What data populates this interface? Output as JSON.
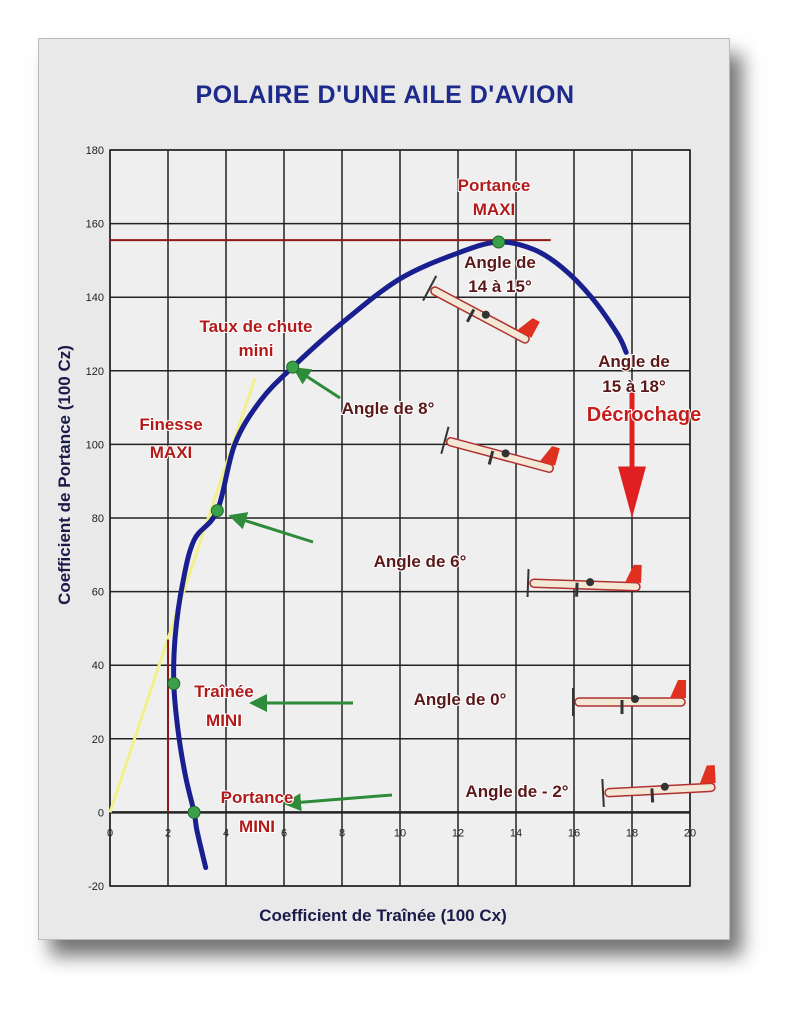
{
  "chart_data": {
    "type": "line",
    "title": "POLAIRE D'UNE AILE D'AVION",
    "xlabel": "Coefficient de Traînée (100 Cx)",
    "ylabel": "Coefficient de Portance (100 Cz)",
    "xlim": [
      0,
      20
    ],
    "ylim": [
      -20,
      180
    ],
    "xticks": [
      0,
      2,
      4,
      6,
      8,
      10,
      12,
      14,
      16,
      18,
      20
    ],
    "yticks": [
      -20,
      0,
      20,
      40,
      60,
      80,
      100,
      120,
      140,
      160,
      180
    ],
    "grid": true,
    "series": [
      {
        "name": "polaire",
        "color": "#1a1f8f",
        "x": [
          3.3,
          3.0,
          2.9,
          2.6,
          2.35,
          2.2,
          2.25,
          2.5,
          2.9,
          3.7,
          4.3,
          5.2,
          6.3,
          8.0,
          10.0,
          12.0,
          13.4,
          14.6,
          15.6,
          16.6,
          17.5,
          17.8
        ],
        "y": [
          -15,
          -5,
          0,
          10,
          22,
          35,
          48,
          62,
          74,
          82,
          100,
          112,
          121,
          133,
          145,
          152,
          155,
          153,
          148,
          140,
          130,
          125
        ]
      }
    ],
    "key_points": [
      {
        "name": "Portance MINI",
        "x": 2.9,
        "y": 0
      },
      {
        "name": "Trainee MINI",
        "x": 2.2,
        "y": 35
      },
      {
        "name": "Finesse MAXI",
        "x": 3.7,
        "y": 82
      },
      {
        "name": "Taux de chute mini",
        "x": 6.3,
        "y": 121
      },
      {
        "name": "Portance MAXI",
        "x": 13.4,
        "y": 155
      }
    ],
    "reference_lines": {
      "cz_max": {
        "y": 155.5,
        "x_from": 0,
        "x_to": 15.2,
        "color": "#8b1a1a"
      },
      "cx_min": {
        "x": 2,
        "y_from": 0,
        "y_to": 47,
        "color": "#8b1a1a"
      },
      "tangent": {
        "from": [
          0,
          0
        ],
        "to": [
          5,
          118
        ],
        "color": "#f2f08a"
      }
    },
    "annotations": {
      "portance_maxi": [
        "Portance",
        "MAXI"
      ],
      "taux_chute": [
        "Taux de chute",
        "mini"
      ],
      "finesse_maxi": [
        "Finesse",
        "MAXI"
      ],
      "trainee_mini": [
        "Traînée",
        "MINI"
      ],
      "portance_mini": [
        "Portance",
        "MINI"
      ],
      "angle_14_15": [
        "Angle de",
        "14 à 15°"
      ],
      "angle_15_18": [
        "Angle de",
        "15 à 18°"
      ],
      "decrochage": "Décrochage",
      "angle_8": "Angle de 8°",
      "angle_6": "Angle de 6°",
      "angle_0": "Angle de 0°",
      "angle_m2": "Angle de - 2°"
    }
  }
}
